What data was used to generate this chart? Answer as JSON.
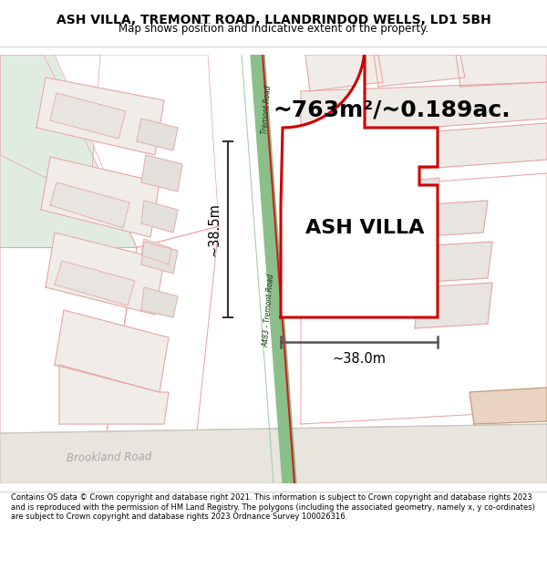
{
  "title": "ASH VILLA, TREMONT ROAD, LLANDRINDOD WELLS, LD1 5BH",
  "subtitle": "Map shows position and indicative extent of the property.",
  "area_label": "~763m²/~0.189ac.",
  "property_label": "ASH VILLA",
  "dim_vertical": "~38.5m",
  "dim_horizontal": "~38.0m",
  "road_label_long": "A483 - Tremont Road",
  "road_label_short": "Tremont Road",
  "brookland_label": "Brookland Road",
  "footer": "Contains OS data © Crown copyright and database right 2021. This information is subject to Crown copyright and database rights 2023 and is reproduced with the permission of HM Land Registry. The polygons (including the associated geometry, namely x, y co-ordinates) are subject to Crown copyright and database rights 2023 Ordnance Survey 100026316.",
  "title_fontsize": 10,
  "subtitle_fontsize": 8.5,
  "footer_fontsize": 6.0,
  "map_bg": "#f7f4f0",
  "road_green_fill": "#8abf8a",
  "road_green_edge": "#5a9f5a",
  "road_red_line": "#cc2222",
  "property_red": "#cc0000",
  "neighbor_pink": "#e8a0a0",
  "neighbor_fill": "#ede8e4",
  "green_tint": "#e0ece0",
  "dim_line_color": "#333333",
  "brookland_color": "#aaaaaa"
}
